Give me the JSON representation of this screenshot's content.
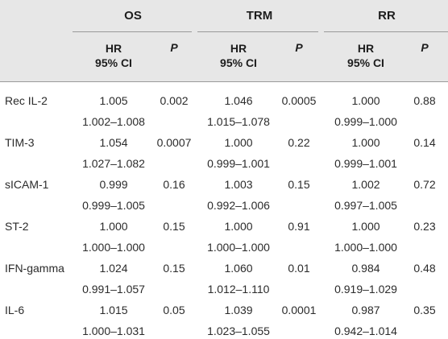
{
  "table": {
    "groups": [
      "OS",
      "TRM",
      "RR"
    ],
    "subheaders": {
      "hr_line1": "HR",
      "hr_line2": "95% CI",
      "p": "P"
    },
    "rows": [
      {
        "label": "Rec IL-2",
        "os": [
          "1.005",
          "1.002–1.008",
          "0.002"
        ],
        "trm": [
          "1.046",
          "1.015–1.078",
          "0.0005"
        ],
        "rr": [
          "1.000",
          "0.999–1.000",
          "0.88"
        ]
      },
      {
        "label": "TIM-3",
        "os": [
          "1.054",
          "1.027–1.082",
          "0.0007"
        ],
        "trm": [
          "1.000",
          "0.999–1.001",
          "0.22"
        ],
        "rr": [
          "1.000",
          "0.999–1.001",
          "0.14"
        ]
      },
      {
        "label": "sICAM-1",
        "os": [
          "0.999",
          "0.999–1.005",
          "0.16"
        ],
        "trm": [
          "1.003",
          "0.992–1.006",
          "0.15"
        ],
        "rr": [
          "1.002",
          "0.997–1.005",
          "0.72"
        ]
      },
      {
        "label": "ST-2",
        "os": [
          "1.000",
          "1.000–1.000",
          "0.15"
        ],
        "trm": [
          "1.000",
          "1.000–1.000",
          "0.91"
        ],
        "rr": [
          "1.000",
          "1.000–1.000",
          "0.23"
        ]
      },
      {
        "label": "IFN-gamma",
        "os": [
          "1.024",
          "0.991–1.057",
          "0.15"
        ],
        "trm": [
          "1.060",
          "1.012–1.110",
          "0.01"
        ],
        "rr": [
          "0.984",
          "0.919–1.029",
          "0.48"
        ]
      },
      {
        "label": "IL-6",
        "os": [
          "1.015",
          "1.000–1.031",
          "0.05"
        ],
        "trm": [
          "1.039",
          "1.023–1.055",
          "0.0001"
        ],
        "rr": [
          "0.987",
          "0.942–1.014"
        ],
        "rr_p": "0.35"
      }
    ]
  }
}
